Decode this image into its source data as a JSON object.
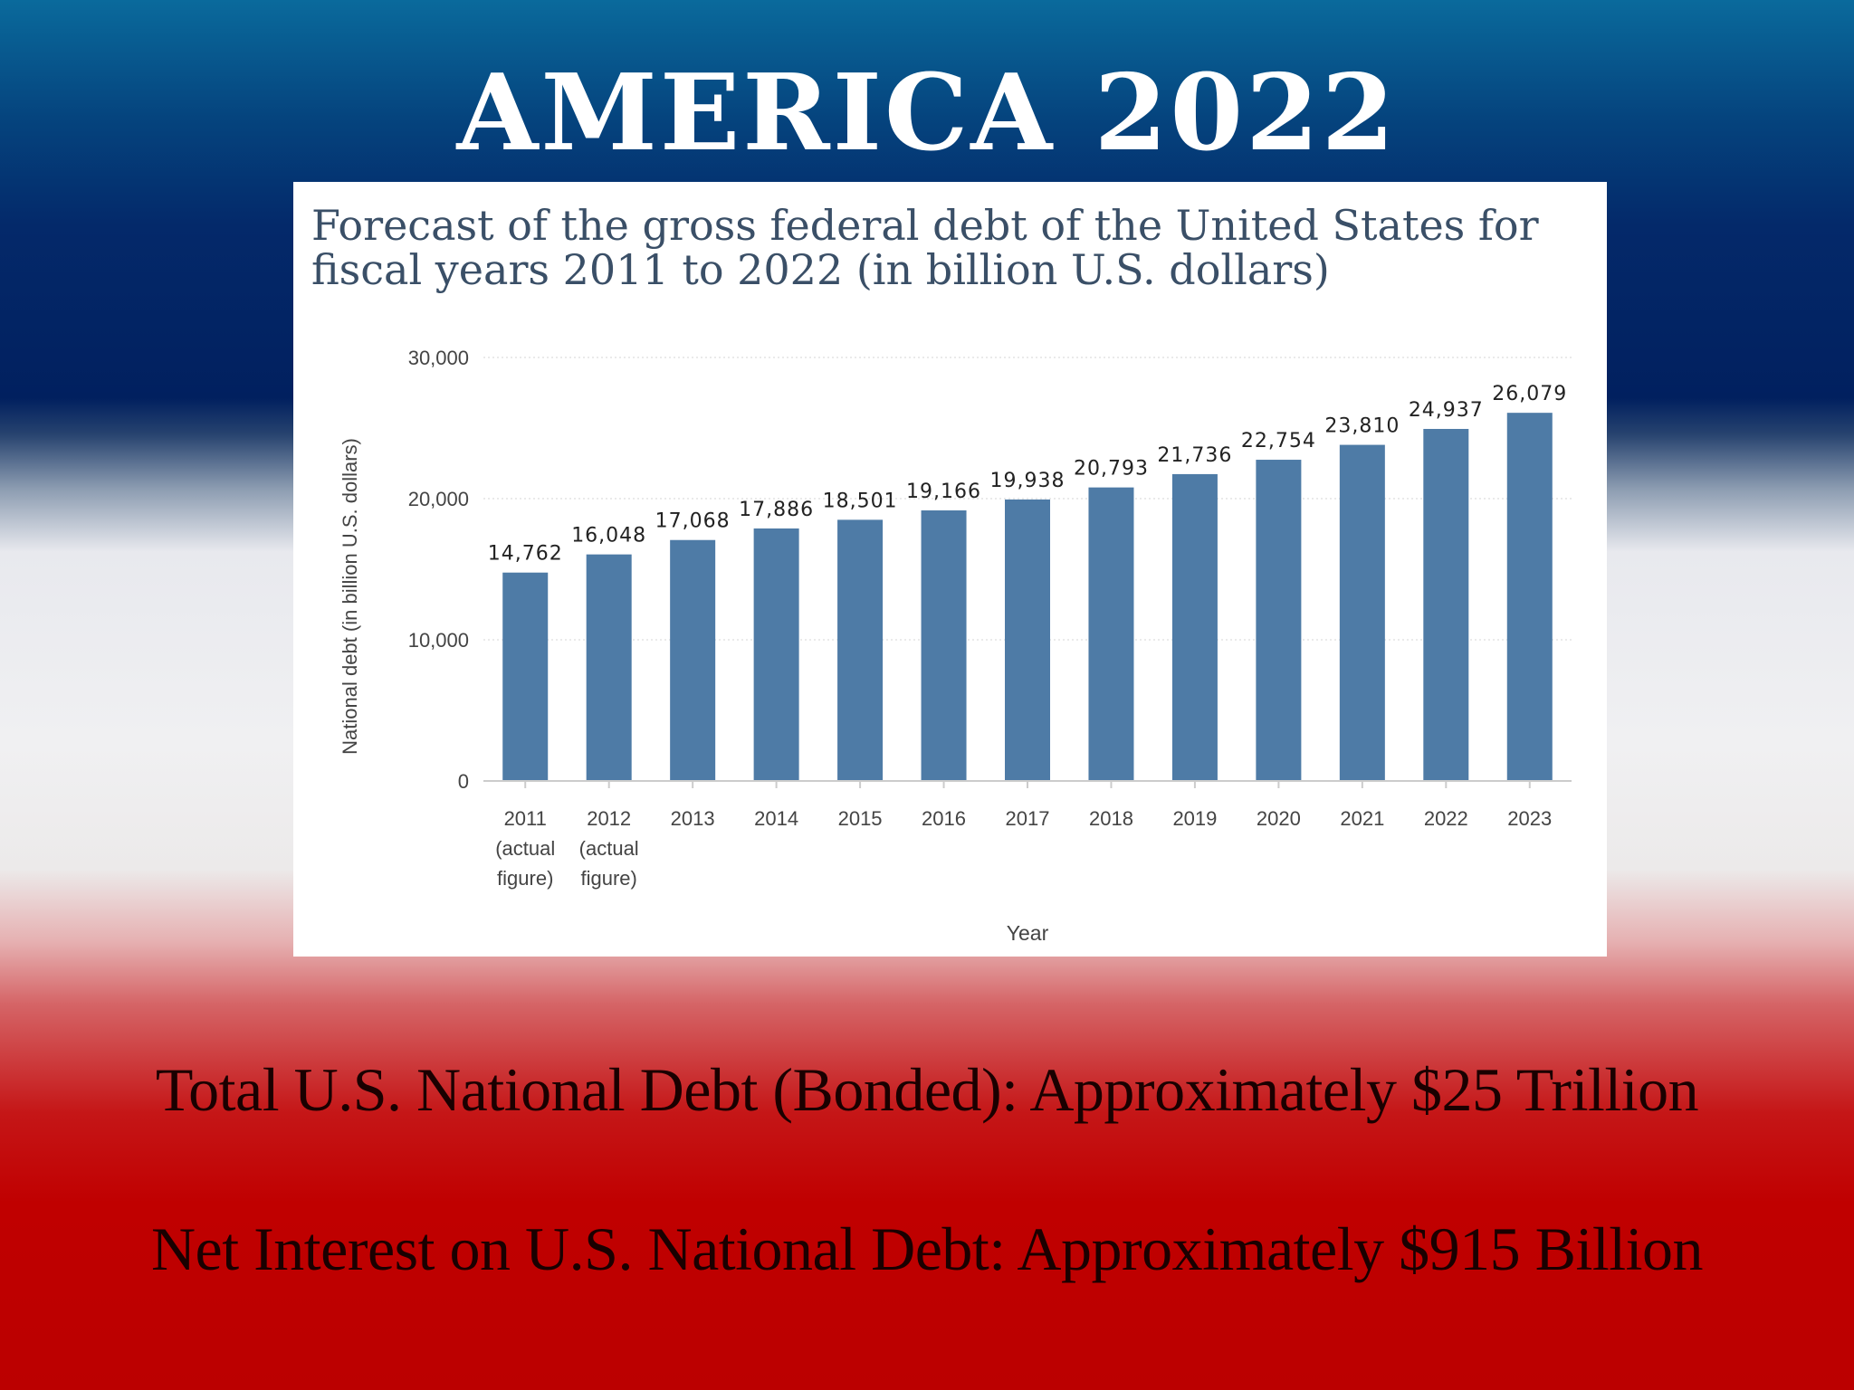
{
  "slide": {
    "title": "AMERICA 2022",
    "summary": [
      "Total U.S. National Debt (Bonded): Approximately $25 Trillion",
      "Net Interest on U.S. National Debt: Approximately $915 Billion"
    ]
  },
  "colors": {
    "bar": "#4e7ba6",
    "panel_bg": "#ffffff",
    "title_text": "#3a4f67",
    "axis_text": "#444444"
  },
  "chart_data": {
    "type": "bar",
    "title": "Forecast of the gross federal debt of the United States for fiscal years 2011 to 2022 (in billion U.S. dollars)",
    "xlabel": "Year",
    "ylabel": "National debt (in billion U.S. dollars)",
    "ylim": [
      0,
      30000
    ],
    "yticks": [
      "0",
      "10,000",
      "20,000",
      "30,000"
    ],
    "grid": true,
    "categories": [
      [
        "2011",
        "(actual",
        "figure)"
      ],
      [
        "2012",
        "(actual",
        "figure)"
      ],
      [
        "2013"
      ],
      [
        "2014"
      ],
      [
        "2015"
      ],
      [
        "2016"
      ],
      [
        "2017"
      ],
      [
        "2018"
      ],
      [
        "2019"
      ],
      [
        "2020"
      ],
      [
        "2021"
      ],
      [
        "2022"
      ],
      [
        "2023"
      ]
    ],
    "values": [
      14762,
      16048,
      17068,
      17886,
      18501,
      19166,
      19938,
      20793,
      21736,
      22754,
      23810,
      24937,
      26079
    ],
    "value_labels": [
      "14,762",
      "16,048",
      "17,068",
      "17,886",
      "18,501",
      "19,166",
      "19,938",
      "20,793",
      "21,736",
      "22,754",
      "23,810",
      "24,937",
      "26,079"
    ]
  }
}
